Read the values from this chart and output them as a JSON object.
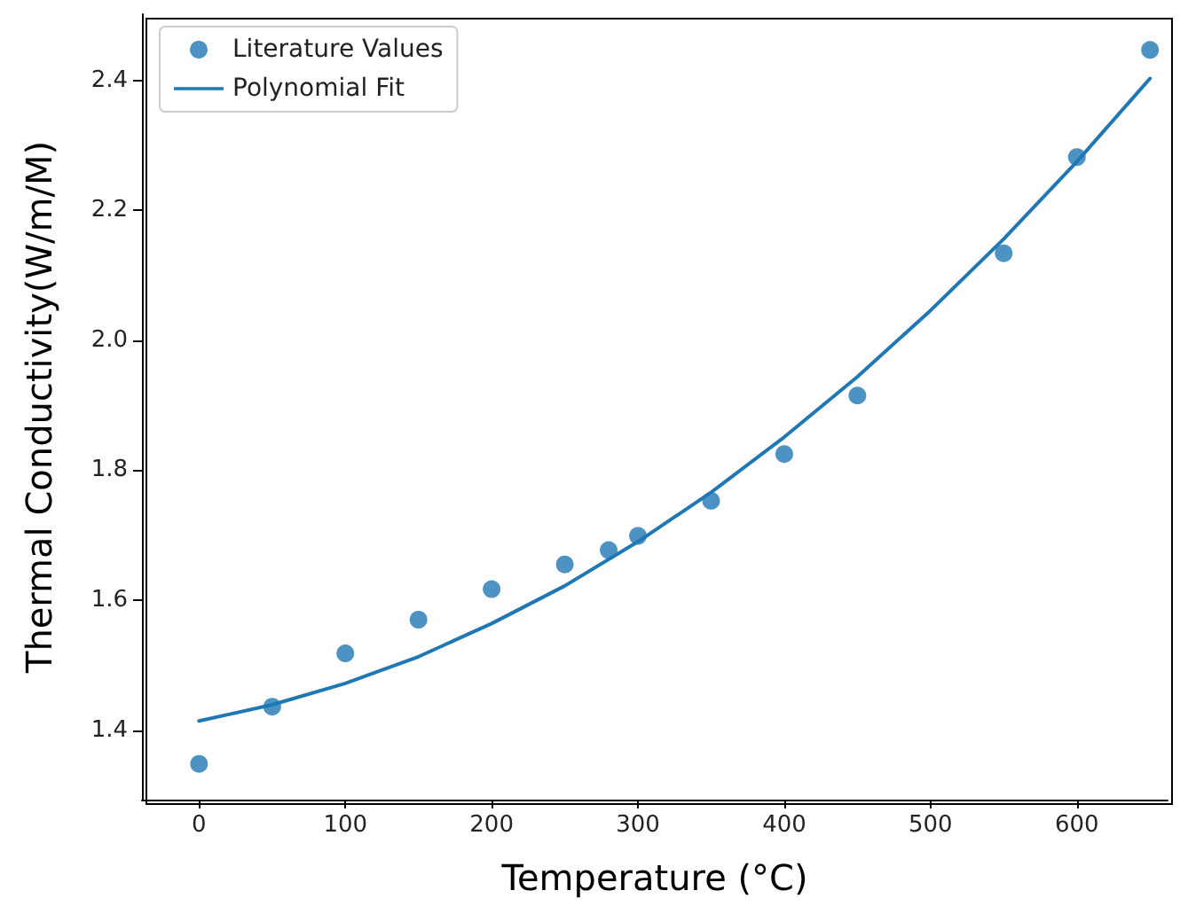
{
  "chart_data": {
    "type": "scatter",
    "xlabel": "Temperature (°C)",
    "ylabel": "Thermal Conductivity(W/m/M)",
    "xlim": [
      -39,
      662
    ],
    "xticks": [
      0,
      100,
      200,
      300,
      400,
      500,
      600
    ],
    "ylim": [
      1.293,
      2.502
    ],
    "yticks": [
      1.4,
      1.6,
      1.8,
      {
        "value": 2,
        "label": "2.0"
      },
      2.2,
      2.4
    ],
    "grid": false,
    "legend": "top left",
    "series": [
      {
        "name": "Literature Values",
        "marker": "circle",
        "color": "#1f77b4",
        "x": [
          0,
          50,
          100,
          150,
          200,
          250,
          280,
          300,
          350,
          400,
          450,
          550,
          600,
          650
        ],
        "values": [
          1.348,
          1.436,
          1.518,
          1.57,
          1.617,
          1.655,
          1.677,
          1.699,
          1.753,
          1.825,
          1.915,
          2.134,
          2.282,
          2.447
        ]
      },
      {
        "name": "Polynomial Fit",
        "type": "line",
        "marker": "none",
        "line_style": "solid",
        "color": "#1f77b4",
        "x": [
          0,
          50,
          100,
          150,
          200,
          250,
          300,
          350,
          400,
          450,
          500,
          550,
          600,
          650
        ],
        "values": [
          1.414,
          1.439,
          1.472,
          1.513,
          1.564,
          1.622,
          1.69,
          1.766,
          1.851,
          1.944,
          2.046,
          2.156,
          2.275,
          2.403
        ]
      }
    ]
  }
}
